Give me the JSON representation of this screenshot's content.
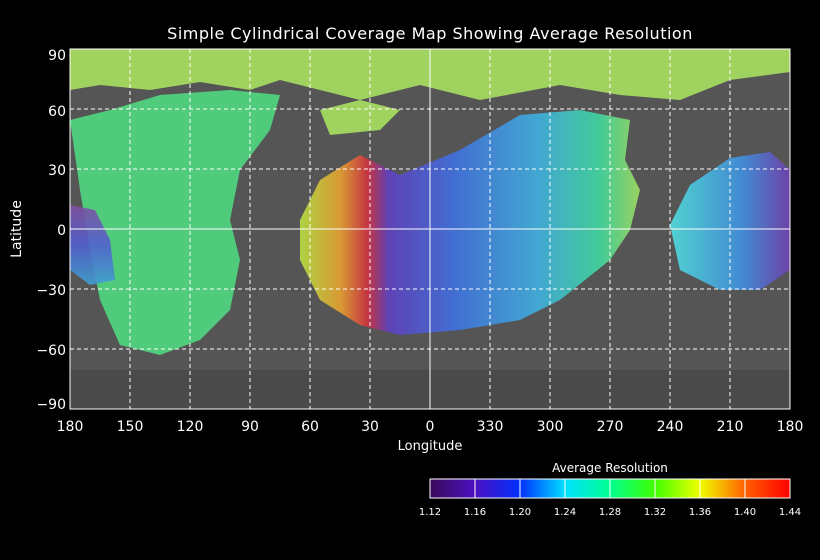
{
  "title": "Simple Cylindrical Coverage Map Showing Average Resolution",
  "chart_data": {
    "type": "heatmap",
    "title": "Simple Cylindrical Coverage Map Showing Average Resolution",
    "xlabel": "Longitude",
    "ylabel": "Latitude",
    "x_ticks": [
      "180",
      "150",
      "120",
      "90",
      "60",
      "30",
      "0",
      "330",
      "300",
      "270",
      "240",
      "210",
      "180"
    ],
    "y_ticks": [
      "90",
      "60",
      "30",
      "0",
      "−30",
      "−60",
      "−90"
    ],
    "ylim": [
      -90,
      90
    ],
    "grid": true,
    "colorbar": {
      "title": "Average Resolution",
      "ticks": [
        "1.12",
        "1.16",
        "1.20",
        "1.24",
        "1.28",
        "1.32",
        "1.36",
        "1.40",
        "1.44"
      ],
      "range": [
        1.12,
        1.44
      ],
      "colors": [
        "#3a0a5a",
        "#0010ff",
        "#00c0ff",
        "#00ffc0",
        "#00ff00",
        "#c0ff00",
        "#ffa000",
        "#ff2000",
        "#ff0000"
      ]
    }
  }
}
